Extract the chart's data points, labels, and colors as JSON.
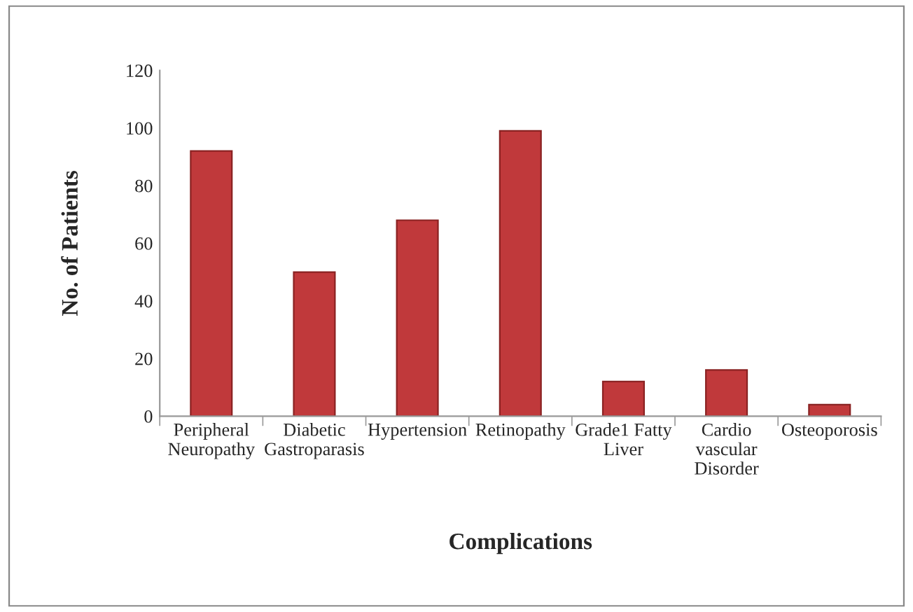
{
  "chart_data": {
    "type": "bar",
    "xlabel": "Complications",
    "ylabel": "No. of Patients",
    "categories": [
      "Peripheral\nNeuropathy",
      "Diabetic\nGastroparasis",
      "Hypertension",
      "Retinopathy",
      "Grade1 Fatty\nLiver",
      "Cardio\nvascular\nDisorder",
      "Osteoporosis"
    ],
    "values": [
      92,
      50,
      68,
      99,
      12,
      16,
      4
    ],
    "color": "#c0393b",
    "ylim": [
      0,
      120
    ],
    "yticks": [
      0,
      20,
      40,
      60,
      80,
      100,
      120
    ],
    "grid": false,
    "legend": false
  }
}
